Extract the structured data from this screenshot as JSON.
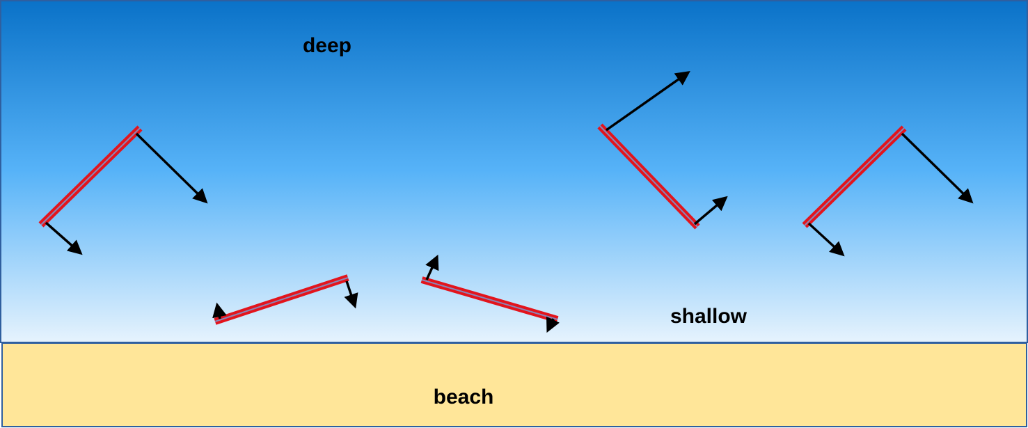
{
  "labels": {
    "deep": "deep",
    "shallow": "shallow",
    "beach": "beach"
  }
}
